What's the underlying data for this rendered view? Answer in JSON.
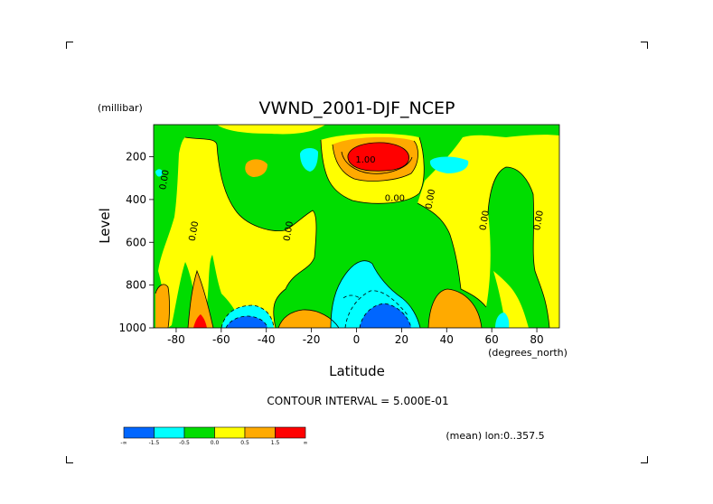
{
  "chart_data": {
    "type": "heatmap",
    "title": "VWND_2001-DJF_NCEP",
    "xlabel": "Latitude",
    "ylabel": "Level",
    "y_unit": "(millibar)",
    "x_unit": "(degrees_north)",
    "xlim": [
      -90,
      90
    ],
    "ylim": [
      1000,
      50
    ],
    "x_ticks": [
      -80,
      -60,
      -40,
      -20,
      0,
      20,
      40,
      60,
      80
    ],
    "y_ticks": [
      200,
      400,
      600,
      800,
      1000
    ],
    "contour_interval_text": "CONTOUR INTERVAL = 5.000E-01",
    "mean_text": "(mean) lon:0..357.5",
    "contour_labels": [
      {
        "text": "0.00",
        "lat": -84,
        "level": 310
      },
      {
        "text": "0.00",
        "lat": -71,
        "level": 550
      },
      {
        "text": "0.00",
        "lat": -29,
        "level": 550
      },
      {
        "text": "1.00",
        "lat": 4,
        "level": 210
      },
      {
        "text": "0.00",
        "lat": 17,
        "level": 390
      },
      {
        "text": "0.00",
        "lat": 34,
        "level": 400
      },
      {
        "text": "0.00",
        "lat": 58,
        "level": 500
      },
      {
        "text": "0.00",
        "lat": 82,
        "level": 500
      }
    ],
    "colorbar": {
      "colors": [
        "#0066ff",
        "#00ffff",
        "#00dd00",
        "#ffff00",
        "#ffaa00",
        "#ff0000"
      ],
      "labels": [
        "-∞",
        "-1.5",
        "-0.5",
        "0.0",
        "0.5",
        "1.5",
        "∞"
      ]
    },
    "regions": {
      "background_level": "0.0 to 0.5",
      "positive_max": {
        "lat": 12,
        "level": 170,
        "band": "> 1.5"
      },
      "negative_min": [
        {
          "lat": 14,
          "level": 960,
          "band": "< -1.5"
        },
        {
          "lat": -50,
          "level": 980,
          "band": "< -1.5"
        }
      ]
    }
  }
}
